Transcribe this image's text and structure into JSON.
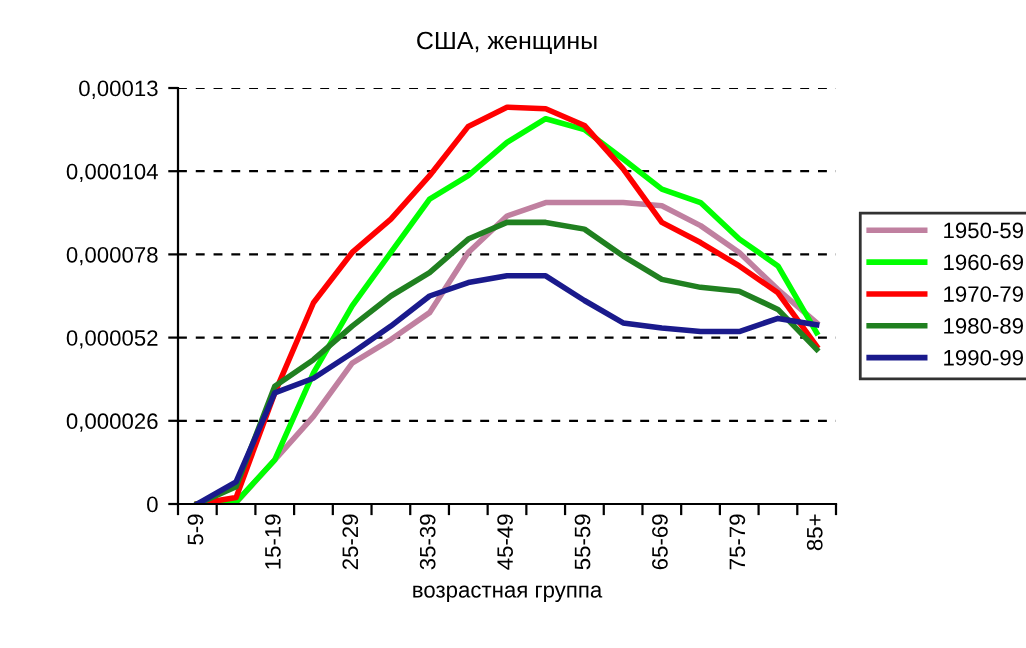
{
  "chart_data": {
    "type": "line",
    "title": "США, женщины",
    "xlabel": "возрастная группа",
    "categories": [
      "5-9",
      null,
      "15-19",
      null,
      "25-29",
      null,
      "35-39",
      null,
      "45-49",
      null,
      "55-59",
      null,
      "65-69",
      null,
      "75-79",
      null,
      "85+"
    ],
    "series": [
      {
        "name": "1950-59",
        "color": "#c080a0",
        "values": [
          0,
          4e-07,
          1.38e-05,
          2.74e-05,
          4.4e-05,
          5.14e-05,
          5.98e-05,
          7.86e-05,
          9e-05,
          9.42e-05,
          9.42e-05,
          9.42e-05,
          9.32e-05,
          8.7e-05,
          7.86e-05,
          6.7e-05,
          5.66e-05
        ]
      },
      {
        "name": "1960-69",
        "color": "#00ff00",
        "values": [
          0,
          6e-07,
          1.38e-05,
          4.1e-05,
          6.19e-05,
          7.86e-05,
          9.53e-05,
          0.0001026,
          0.000113,
          0.0001204,
          0.000117,
          0.0001078,
          9.84e-05,
          9.42e-05,
          8.28e-05,
          7.44e-05,
          5.35e-05
        ]
      },
      {
        "name": "1970-79",
        "color": "#ff0000",
        "values": [
          0,
          2e-06,
          3.47e-05,
          6.29e-05,
          7.86e-05,
          8.9e-05,
          0.0001026,
          0.000118,
          0.000124,
          0.0001235,
          0.0001183,
          0.0001047,
          8.8e-05,
          8.17e-05,
          7.44e-05,
          6.6e-05,
          4.93e-05
        ]
      },
      {
        "name": "1980-89",
        "color": "#208020",
        "values": [
          0,
          5.4e-06,
          3.68e-05,
          4.51e-05,
          5.56e-05,
          6.5e-05,
          7.23e-05,
          8.28e-05,
          8.8e-05,
          8.8e-05,
          8.59e-05,
          7.75e-05,
          7.02e-05,
          6.77e-05,
          6.65e-05,
          6.08e-05,
          4.83e-05
        ]
      },
      {
        "name": "1990-99",
        "color": "#1a1a8c",
        "values": [
          0,
          6.9e-06,
          3.47e-05,
          3.93e-05,
          4.72e-05,
          5.56e-05,
          6.5e-05,
          6.92e-05,
          7.13e-05,
          7.13e-05,
          6.36e-05,
          5.66e-05,
          5.5e-05,
          5.39e-05,
          5.39e-05,
          5.8e-05,
          5.6e-05
        ]
      }
    ],
    "ylim": [
      0,
      0.00013
    ],
    "yticks": [
      {
        "value": 0,
        "label": "0"
      },
      {
        "value": 2.6e-05,
        "label": "0,000026"
      },
      {
        "value": 5.2e-05,
        "label": "0,000052"
      },
      {
        "value": 7.8e-05,
        "label": "0,000078"
      },
      {
        "value": 0.000104,
        "label": "0,000104"
      },
      {
        "value": 0.00013,
        "label": "0,00013"
      }
    ],
    "grid": "y",
    "legend": "right",
    "line_style": "solid",
    "marker": "none"
  }
}
